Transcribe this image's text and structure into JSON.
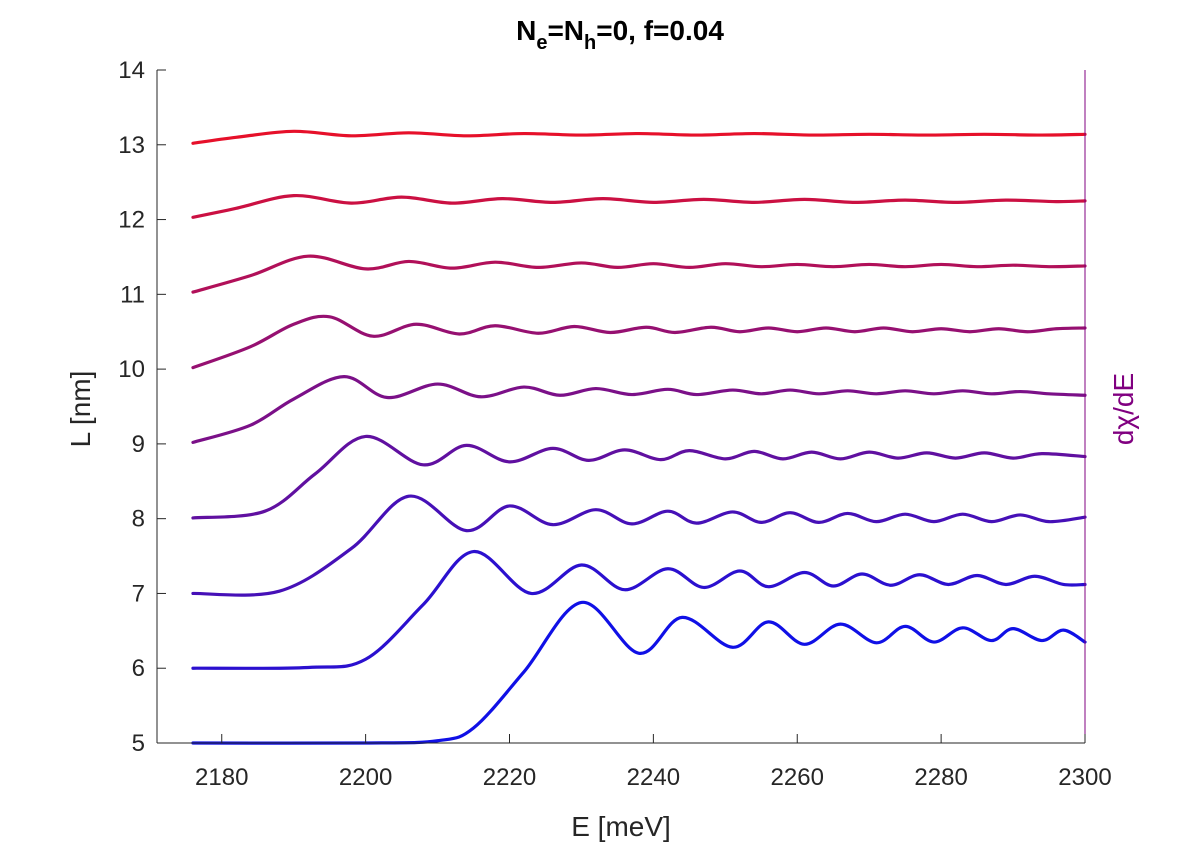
{
  "chart_data": {
    "type": "line",
    "title": {
      "parts": [
        {
          "text": "N",
          "sub": false
        },
        {
          "text": "e",
          "sub": true
        },
        {
          "text": "=N",
          "sub": false
        },
        {
          "text": "h",
          "sub": true
        },
        {
          "text": "=0, f=0.04",
          "sub": false
        }
      ]
    },
    "xlabel": "E [meV]",
    "ylabel": "L [nm]",
    "right_label": "dχ/dE",
    "xlim": [
      2171,
      2300
    ],
    "ylim": [
      5,
      14
    ],
    "xticks": [
      "2180",
      "2200",
      "2220",
      "2240",
      "2260",
      "2280",
      "2300"
    ],
    "yticks": [
      "5",
      "6",
      "7",
      "8",
      "9",
      "10",
      "11",
      "12",
      "13",
      "14"
    ],
    "grid": false,
    "colors": {
      "start": "#1010e6",
      "end": "#e6102a",
      "axis": "#262626",
      "right_axis": "#800080"
    },
    "series_note_offset_unit": "nm",
    "series": [
      {
        "L": 5,
        "x": [
          2176,
          2200,
          2210,
          2215,
          2222,
          2230,
          2238,
          2244,
          2251,
          2256,
          2261,
          2266,
          2271,
          2275,
          2279,
          2283,
          2287,
          2290,
          2294,
          2297,
          2300
        ],
        "y": [
          5.0,
          5.0,
          5.03,
          5.2,
          5.95,
          6.88,
          6.2,
          6.68,
          6.28,
          6.62,
          6.32,
          6.59,
          6.34,
          6.56,
          6.35,
          6.54,
          6.37,
          6.53,
          6.37,
          6.51,
          6.35
        ]
      },
      {
        "L": 6,
        "x": [
          2176,
          2192,
          2200,
          2208,
          2215,
          2223,
          2230,
          2236,
          2242,
          2247,
          2252,
          2256,
          2261,
          2265,
          2269,
          2273,
          2277,
          2281,
          2285,
          2289,
          2293,
          2297,
          2300
        ],
        "y": [
          6.0,
          6.01,
          6.12,
          6.85,
          7.56,
          7.0,
          7.38,
          7.05,
          7.33,
          7.08,
          7.3,
          7.09,
          7.28,
          7.1,
          7.26,
          7.11,
          7.25,
          7.12,
          7.24,
          7.12,
          7.23,
          7.12,
          7.12
        ]
      },
      {
        "L": 7,
        "x": [
          2176,
          2188,
          2198,
          2206,
          2214,
          2220,
          2226,
          2232,
          2237,
          2242,
          2246,
          2251,
          2255,
          2259,
          2263,
          2267,
          2271,
          2275,
          2279,
          2283,
          2287,
          2291,
          2295,
          2300
        ],
        "y": [
          7.0,
          7.03,
          7.6,
          8.3,
          7.84,
          8.17,
          7.92,
          8.12,
          7.93,
          8.1,
          7.94,
          8.09,
          7.95,
          8.08,
          7.95,
          8.07,
          7.96,
          8.06,
          7.96,
          8.06,
          7.96,
          8.05,
          7.96,
          8.02
        ]
      },
      {
        "L": 8,
        "x": [
          2176,
          2186,
          2193,
          2200,
          2208,
          2214,
          2220,
          2226,
          2231,
          2236,
          2241,
          2245,
          2250,
          2254,
          2258,
          2262,
          2266,
          2270,
          2274,
          2278,
          2282,
          2286,
          2290,
          2294,
          2300
        ],
        "y": [
          8.01,
          8.1,
          8.6,
          9.1,
          8.72,
          8.98,
          8.76,
          8.94,
          8.78,
          8.92,
          8.79,
          8.91,
          8.8,
          8.9,
          8.8,
          8.89,
          8.8,
          8.89,
          8.81,
          8.88,
          8.81,
          8.88,
          8.81,
          8.87,
          8.83
        ]
      },
      {
        "L": 9,
        "x": [
          2176,
          2184,
          2190,
          2197,
          2203,
          2210,
          2216,
          2222,
          2227,
          2232,
          2237,
          2242,
          2246,
          2251,
          2255,
          2259,
          2263,
          2267,
          2271,
          2275,
          2279,
          2283,
          2287,
          2291,
          2295,
          2300
        ],
        "y": [
          9.02,
          9.25,
          9.6,
          9.9,
          9.62,
          9.8,
          9.63,
          9.76,
          9.65,
          9.74,
          9.66,
          9.73,
          9.66,
          9.72,
          9.67,
          9.72,
          9.67,
          9.71,
          9.67,
          9.71,
          9.67,
          9.71,
          9.67,
          9.7,
          9.67,
          9.65
        ]
      },
      {
        "L": 10,
        "x": [
          2176,
          2184,
          2190,
          2195,
          2201,
          2207,
          2213,
          2218,
          2224,
          2229,
          2234,
          2239,
          2243,
          2248,
          2252,
          2256,
          2260,
          2264,
          2268,
          2272,
          2276,
          2280,
          2284,
          2288,
          2292,
          2296,
          2300
        ],
        "y": [
          10.02,
          10.3,
          10.6,
          10.7,
          10.44,
          10.6,
          10.47,
          10.58,
          10.48,
          10.57,
          10.49,
          10.56,
          10.49,
          10.56,
          10.5,
          10.55,
          10.5,
          10.55,
          10.5,
          10.55,
          10.5,
          10.54,
          10.5,
          10.54,
          10.5,
          10.54,
          10.55
        ]
      },
      {
        "L": 11,
        "x": [
          2176,
          2184,
          2192,
          2200,
          2206,
          2212,
          2218,
          2224,
          2230,
          2235,
          2240,
          2245,
          2250,
          2255,
          2260,
          2265,
          2270,
          2275,
          2280,
          2285,
          2290,
          2295,
          2300
        ],
        "y": [
          11.03,
          11.25,
          11.51,
          11.34,
          11.44,
          11.35,
          11.43,
          11.36,
          11.42,
          11.36,
          11.41,
          11.36,
          11.41,
          11.37,
          11.4,
          11.37,
          11.4,
          11.37,
          11.4,
          11.37,
          11.39,
          11.37,
          11.38
        ]
      },
      {
        "L": 12,
        "x": [
          2176,
          2182,
          2190,
          2198,
          2205,
          2212,
          2219,
          2226,
          2233,
          2240,
          2247,
          2254,
          2261,
          2268,
          2275,
          2282,
          2289,
          2296,
          2300
        ],
        "y": [
          12.03,
          12.15,
          12.32,
          12.22,
          12.3,
          12.22,
          12.28,
          12.23,
          12.28,
          12.23,
          12.27,
          12.23,
          12.27,
          12.23,
          12.26,
          12.23,
          12.26,
          12.24,
          12.25
        ]
      },
      {
        "L": 13,
        "x": [
          2176,
          2182,
          2190,
          2198,
          2206,
          2214,
          2222,
          2230,
          2238,
          2246,
          2254,
          2262,
          2270,
          2278,
          2286,
          2294,
          2300
        ],
        "y": [
          13.02,
          13.1,
          13.18,
          13.12,
          13.16,
          13.12,
          13.15,
          13.13,
          13.15,
          13.13,
          13.15,
          13.13,
          13.14,
          13.13,
          13.14,
          13.13,
          13.14
        ]
      }
    ]
  }
}
